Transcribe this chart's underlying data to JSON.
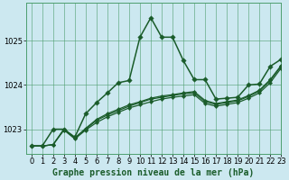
{
  "xlabel": "Graphe pression niveau de la mer (hPa)",
  "bg_color": "#cce8f0",
  "grid_color": "#4d9e6e",
  "line_color": "#1a5c2a",
  "xlim": [
    -0.5,
    23
  ],
  "ylim": [
    1022.45,
    1025.85
  ],
  "yticks": [
    1023,
    1024,
    1025
  ],
  "xticks": [
    0,
    1,
    2,
    3,
    4,
    5,
    6,
    7,
    8,
    9,
    10,
    11,
    12,
    13,
    14,
    15,
    16,
    17,
    18,
    19,
    20,
    21,
    22,
    23
  ],
  "series": [
    {
      "y": [
        1022.62,
        1022.62,
        1023.0,
        1023.0,
        1022.82,
        1023.35,
        1023.6,
        1023.82,
        1024.05,
        1024.1,
        1025.08,
        1025.52,
        1025.08,
        1025.08,
        1024.55,
        1024.12,
        1024.12,
        1023.68,
        1023.7,
        1023.72,
        1024.0,
        1024.02,
        1024.42,
        1024.58
      ],
      "linewidth": 1.1,
      "marker": "D",
      "markersize": 2.8,
      "zorder": 4
    },
    {
      "y": [
        1022.62,
        1022.62,
        1022.65,
        1022.98,
        1022.78,
        1022.98,
        1023.15,
        1023.28,
        1023.38,
        1023.48,
        1023.55,
        1023.62,
        1023.68,
        1023.72,
        1023.75,
        1023.78,
        1023.58,
        1023.52,
        1023.56,
        1023.6,
        1023.7,
        1023.82,
        1024.05,
        1024.38
      ],
      "linewidth": 0.9,
      "marker": "D",
      "markersize": 2.2,
      "zorder": 3
    },
    {
      "y": [
        1022.62,
        1022.62,
        1022.65,
        1023.0,
        1022.8,
        1023.0,
        1023.2,
        1023.32,
        1023.42,
        1023.52,
        1023.6,
        1023.68,
        1023.72,
        1023.76,
        1023.8,
        1023.82,
        1023.62,
        1023.56,
        1023.6,
        1023.64,
        1023.74,
        1023.86,
        1024.1,
        1024.42
      ],
      "linewidth": 0.9,
      "marker": "D",
      "markersize": 2.2,
      "zorder": 3
    },
    {
      "y": [
        1022.62,
        1022.62,
        1022.65,
        1023.0,
        1022.8,
        1023.02,
        1023.22,
        1023.35,
        1023.45,
        1023.55,
        1023.62,
        1023.7,
        1023.75,
        1023.78,
        1023.82,
        1023.85,
        1023.65,
        1023.58,
        1023.62,
        1023.66,
        1023.76,
        1023.88,
        1024.12,
        1024.44
      ],
      "linewidth": 0.9,
      "marker": "D",
      "markersize": 2.2,
      "zorder": 3
    }
  ],
  "xlabel_fontsize": 7.0,
  "tick_fontsize": 6.0
}
